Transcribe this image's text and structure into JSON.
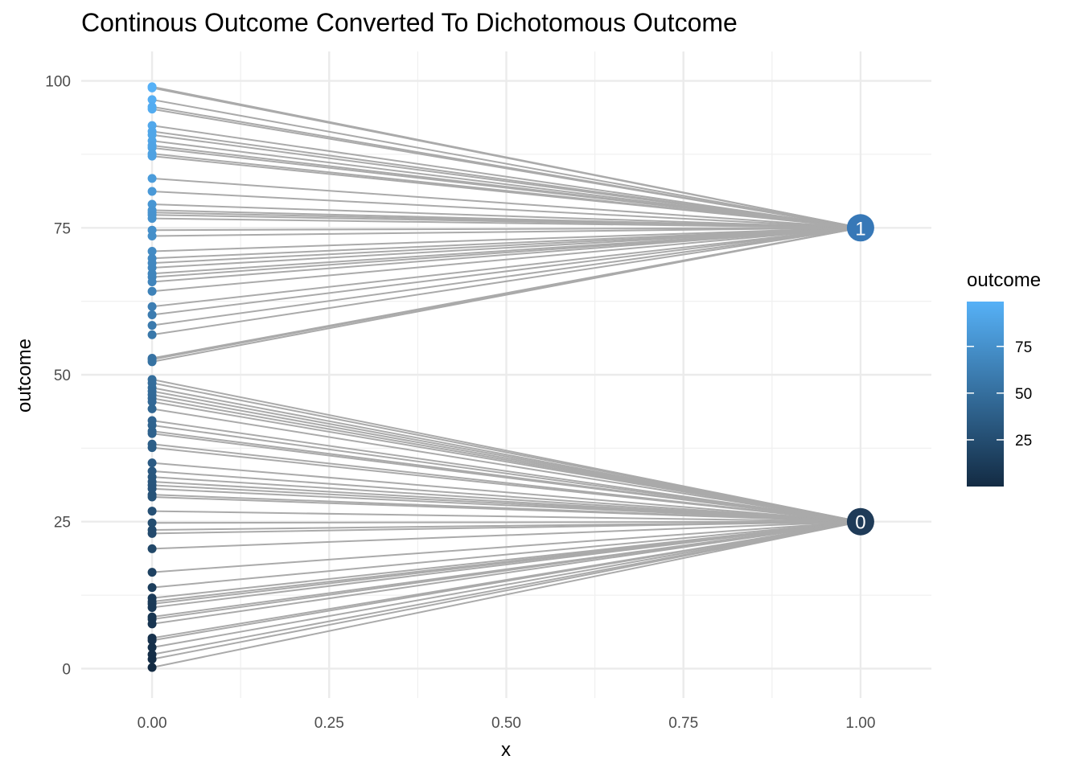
{
  "chart_data": {
    "type": "scatter",
    "title": "Continous Outcome Converted To Dichotomous Outcome",
    "xlabel": "x",
    "ylabel": "outcome",
    "xlim": [
      -0.1,
      1.1
    ],
    "ylim": [
      -5,
      105
    ],
    "x_ticks": [
      "0.00",
      "0.25",
      "0.50",
      "0.75",
      "1.00"
    ],
    "y_ticks": [
      "0",
      "25",
      "50",
      "75",
      "100"
    ],
    "grid": true,
    "legend": {
      "title": "outcome",
      "type": "colorbar",
      "labels": [
        "25",
        "50",
        "75"
      ],
      "range": [
        0,
        99
      ],
      "color_low": "#132b43",
      "color_high": "#56b1f7",
      "placement": "right"
    },
    "threshold": 50,
    "connector_color": "#aaaaaa",
    "points_x": 0,
    "outcomes": [
      99.0,
      98.8,
      96.8,
      95.6,
      95.2,
      92.4,
      91.4,
      90.8,
      89.8,
      89.0,
      88.6,
      87.6,
      87.2,
      83.4,
      81.2,
      79.0,
      78.0,
      77.6,
      77.2,
      76.6,
      74.6,
      73.6,
      71.0,
      69.8,
      69.0,
      68.2,
      67.2,
      66.6,
      65.8,
      64.2,
      61.6,
      60.2,
      58.4,
      56.8,
      52.8,
      52.6,
      52.2,
      49.2,
      48.6,
      47.8,
      47.2,
      46.6,
      46.0,
      45.4,
      44.2,
      42.2,
      41.4,
      40.4,
      40.0,
      38.2,
      37.6,
      35.0,
      33.6,
      32.6,
      31.8,
      31.2,
      30.6,
      29.6,
      29.2,
      26.8,
      24.8,
      23.6,
      23.0,
      20.4,
      16.4,
      13.8,
      12.0,
      11.4,
      11.0,
      10.4,
      8.8,
      8.4,
      7.6,
      5.2,
      4.8,
      3.6,
      2.4,
      1.6,
      0.2
    ],
    "groups": [
      {
        "label": "1",
        "x": 1.0,
        "y": 75,
        "color": "#3778b7"
      },
      {
        "label": "0",
        "x": 1.0,
        "y": 25,
        "color": "#1f3b58"
      }
    ]
  }
}
